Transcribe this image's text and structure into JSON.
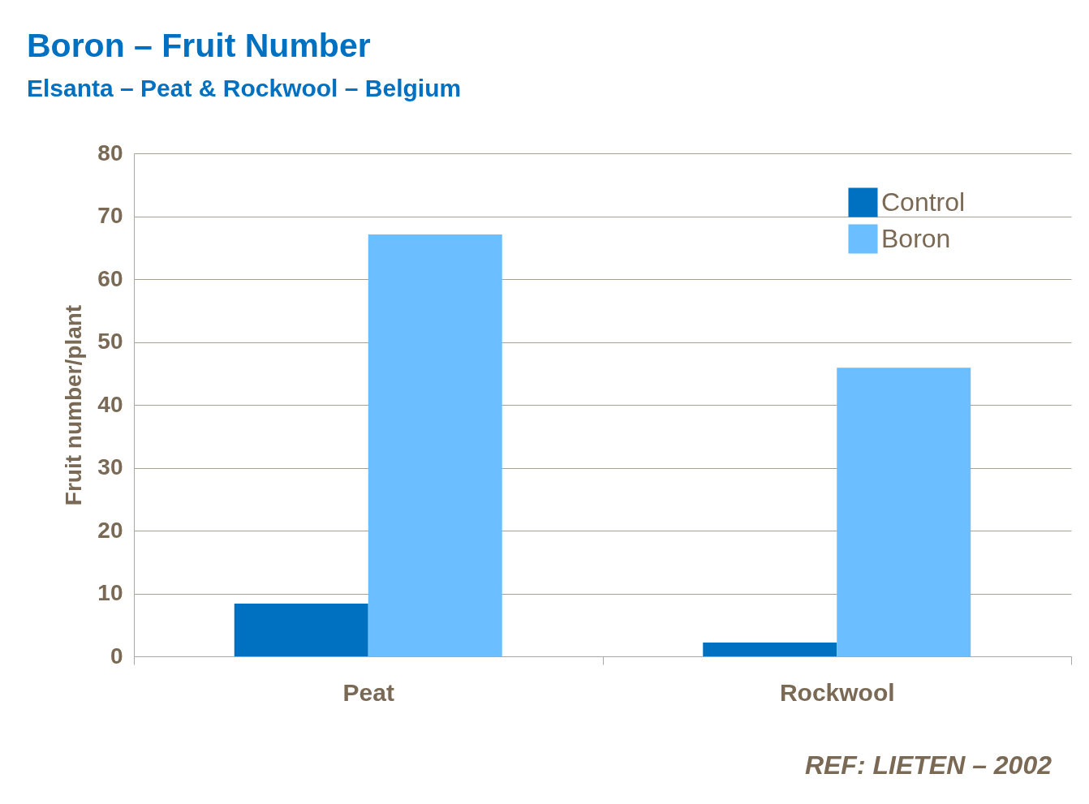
{
  "chart_data": {
    "type": "bar",
    "title": "Boron – Fruit Number",
    "subtitle": "Elsanta – Peat & Rockwool – Belgium",
    "ylabel": "Fruit number/plant",
    "categories": [
      "Peat",
      "Rockwool"
    ],
    "series": [
      {
        "name": "Control",
        "color": "#0070c0",
        "values": [
          8.4,
          2.2
        ]
      },
      {
        "name": "Boron",
        "color": "#6bbeff",
        "values": [
          67.1,
          45.9
        ]
      }
    ],
    "ylim": [
      0,
      80
    ],
    "yticks": [
      0,
      10,
      20,
      30,
      40,
      50,
      60,
      70,
      80
    ],
    "grid": "y",
    "legend": "top right",
    "annotations": [
      "REF:  LIETEN – 2002"
    ]
  }
}
